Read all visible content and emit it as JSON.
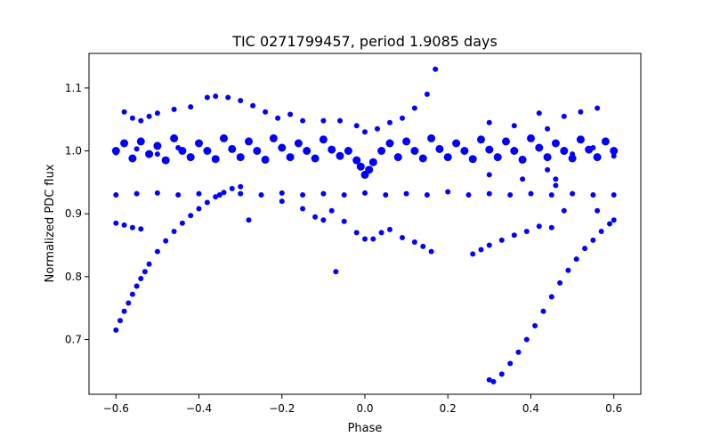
{
  "chart_data": {
    "type": "scatter",
    "title": "TIC 0271799457, period 1.9085 days",
    "xlabel": "Phase",
    "ylabel": "Normalized PDC flux",
    "xlim": [
      -0.665,
      0.665
    ],
    "ylim": [
      0.613,
      1.155
    ],
    "xticks": [
      -0.6,
      -0.4,
      -0.2,
      0.0,
      0.2,
      0.4,
      0.6
    ],
    "xtick_labels": [
      "−0.6",
      "−0.4",
      "−0.2",
      "0.0",
      "0.2",
      "0.4",
      "0.6"
    ],
    "yticks": [
      0.7,
      0.8,
      0.9,
      1.0,
      1.1
    ],
    "ytick_labels": [
      "0.7",
      "0.8",
      "0.9",
      "1.0",
      "1.1"
    ],
    "grid": false,
    "marker_color": "#0000ff",
    "series": [
      {
        "name": "main band",
        "points": [
          [
            -0.6,
            1.0
          ],
          [
            -0.58,
            1.012
          ],
          [
            -0.56,
            0.988
          ],
          [
            -0.54,
            1.015
          ],
          [
            -0.52,
            0.995
          ],
          [
            -0.5,
            1.008
          ],
          [
            -0.48,
            0.985
          ],
          [
            -0.46,
            1.02
          ],
          [
            -0.44,
            1.0
          ],
          [
            -0.42,
            0.99
          ],
          [
            -0.4,
            1.012
          ],
          [
            -0.38,
            1.0
          ],
          [
            -0.36,
            0.987
          ],
          [
            -0.34,
            1.02
          ],
          [
            -0.32,
            1.003
          ],
          [
            -0.3,
            0.99
          ],
          [
            -0.28,
            1.015
          ],
          [
            -0.26,
            1.0
          ],
          [
            -0.24,
            0.986
          ],
          [
            -0.22,
            1.02
          ],
          [
            -0.2,
            1.005
          ],
          [
            -0.18,
            0.99
          ],
          [
            -0.16,
            1.012
          ],
          [
            -0.14,
            1.0
          ],
          [
            -0.12,
            0.988
          ],
          [
            -0.1,
            1.018
          ],
          [
            -0.08,
            1.002
          ],
          [
            -0.06,
            0.992
          ],
          [
            -0.04,
            1.0
          ],
          [
            -0.02,
            0.985
          ],
          [
            -0.01,
            0.975
          ],
          [
            0.0,
            0.962
          ],
          [
            0.01,
            0.97
          ],
          [
            0.02,
            0.982
          ],
          [
            0.04,
            1.0
          ],
          [
            0.06,
            1.012
          ],
          [
            0.08,
            0.99
          ],
          [
            0.1,
            1.015
          ],
          [
            0.12,
            1.0
          ],
          [
            0.14,
            0.988
          ],
          [
            0.16,
            1.02
          ],
          [
            0.18,
            1.003
          ],
          [
            0.2,
            0.99
          ],
          [
            0.22,
            1.012
          ],
          [
            0.24,
            1.0
          ],
          [
            0.26,
            0.987
          ],
          [
            0.28,
            1.018
          ],
          [
            0.3,
            1.002
          ],
          [
            0.32,
            0.99
          ],
          [
            0.34,
            1.015
          ],
          [
            0.36,
            1.0
          ],
          [
            0.38,
            0.986
          ],
          [
            0.4,
            1.02
          ],
          [
            0.42,
            1.005
          ],
          [
            0.44,
            0.99
          ],
          [
            0.46,
            1.012
          ],
          [
            0.48,
            1.0
          ],
          [
            0.5,
            0.988
          ],
          [
            0.52,
            1.018
          ],
          [
            0.54,
            1.002
          ],
          [
            0.56,
            0.99
          ],
          [
            0.58,
            1.015
          ],
          [
            0.6,
            1.0
          ]
        ]
      },
      {
        "name": "outlier tracks",
        "points": [
          [
            -0.6,
            0.715
          ],
          [
            -0.59,
            0.73
          ],
          [
            -0.58,
            0.745
          ],
          [
            -0.57,
            0.758
          ],
          [
            -0.56,
            0.772
          ],
          [
            -0.55,
            0.785
          ],
          [
            -0.54,
            0.797
          ],
          [
            -0.53,
            0.808
          ],
          [
            -0.52,
            0.82
          ],
          [
            -0.5,
            0.84
          ],
          [
            -0.48,
            0.857
          ],
          [
            -0.46,
            0.872
          ],
          [
            -0.44,
            0.885
          ],
          [
            -0.42,
            0.897
          ],
          [
            -0.4,
            0.908
          ],
          [
            -0.38,
            0.918
          ],
          [
            -0.36,
            0.927
          ],
          [
            -0.34,
            0.934
          ],
          [
            -0.32,
            0.94
          ],
          [
            -0.3,
            0.943
          ],
          [
            -0.58,
            1.062
          ],
          [
            -0.56,
            1.052
          ],
          [
            -0.54,
            1.048
          ],
          [
            -0.52,
            1.055
          ],
          [
            -0.5,
            1.06
          ],
          [
            -0.46,
            1.066
          ],
          [
            -0.42,
            1.07
          ],
          [
            -0.38,
            1.085
          ],
          [
            -0.36,
            1.087
          ],
          [
            -0.33,
            1.085
          ],
          [
            -0.3,
            1.08
          ],
          [
            -0.27,
            1.072
          ],
          [
            -0.24,
            1.062
          ],
          [
            -0.21,
            1.052
          ],
          [
            -0.18,
            1.058
          ],
          [
            -0.15,
            1.048
          ],
          [
            -0.1,
            1.048
          ],
          [
            -0.06,
            1.048
          ],
          [
            -0.02,
            1.04
          ],
          [
            0.0,
            1.03
          ],
          [
            0.03,
            1.035
          ],
          [
            0.06,
            1.045
          ],
          [
            0.09,
            1.052
          ],
          [
            0.12,
            1.068
          ],
          [
            0.15,
            1.09
          ],
          [
            0.17,
            1.13
          ],
          [
            -0.6,
            0.93
          ],
          [
            -0.55,
            0.932
          ],
          [
            -0.5,
            0.933
          ],
          [
            -0.45,
            0.93
          ],
          [
            -0.4,
            0.932
          ],
          [
            -0.35,
            0.93
          ],
          [
            -0.3,
            0.932
          ],
          [
            -0.25,
            0.93
          ],
          [
            -0.2,
            0.933
          ],
          [
            -0.15,
            0.93
          ],
          [
            -0.1,
            0.932
          ],
          [
            -0.05,
            0.93
          ],
          [
            0.0,
            0.933
          ],
          [
            0.05,
            0.93
          ],
          [
            0.1,
            0.932
          ],
          [
            0.15,
            0.93
          ],
          [
            0.2,
            0.935
          ],
          [
            0.25,
            0.93
          ],
          [
            0.3,
            0.932
          ],
          [
            0.35,
            0.93
          ],
          [
            0.4,
            0.932
          ],
          [
            0.45,
            0.93
          ],
          [
            0.5,
            0.932
          ],
          [
            0.55,
            0.93
          ],
          [
            0.6,
            0.93
          ],
          [
            -0.6,
            0.885
          ],
          [
            -0.58,
            0.882
          ],
          [
            -0.56,
            0.878
          ],
          [
            -0.54,
            0.876
          ],
          [
            -0.28,
            0.89
          ],
          [
            -0.2,
            0.92
          ],
          [
            -0.15,
            0.908
          ],
          [
            -0.12,
            0.895
          ],
          [
            -0.1,
            0.89
          ],
          [
            -0.08,
            0.905
          ],
          [
            -0.05,
            0.888
          ],
          [
            -0.02,
            0.87
          ],
          [
            0.0,
            0.86
          ],
          [
            0.02,
            0.86
          ],
          [
            0.04,
            0.87
          ],
          [
            0.06,
            0.875
          ],
          [
            0.09,
            0.862
          ],
          [
            0.12,
            0.855
          ],
          [
            0.14,
            0.848
          ],
          [
            0.16,
            0.84
          ],
          [
            -0.07,
            0.808
          ],
          [
            0.26,
            0.836
          ],
          [
            0.28,
            0.843
          ],
          [
            0.3,
            0.85
          ],
          [
            0.33,
            0.858
          ],
          [
            0.36,
            0.866
          ],
          [
            0.39,
            0.872
          ],
          [
            0.42,
            0.88
          ],
          [
            0.45,
            0.878
          ],
          [
            0.3,
            0.636
          ],
          [
            0.31,
            0.633
          ],
          [
            0.33,
            0.645
          ],
          [
            0.35,
            0.662
          ],
          [
            0.37,
            0.68
          ],
          [
            0.39,
            0.7
          ],
          [
            0.41,
            0.722
          ],
          [
            0.43,
            0.745
          ],
          [
            0.45,
            0.768
          ],
          [
            0.47,
            0.79
          ],
          [
            0.49,
            0.81
          ],
          [
            0.51,
            0.828
          ],
          [
            0.53,
            0.845
          ],
          [
            0.55,
            0.858
          ],
          [
            0.57,
            0.872
          ],
          [
            0.59,
            0.884
          ],
          [
            0.6,
            0.89
          ],
          [
            -0.6,
            0.997
          ],
          [
            -0.55,
            1.003
          ],
          [
            -0.5,
            0.995
          ],
          [
            -0.45,
            1.005
          ],
          [
            0.5,
            0.995
          ],
          [
            0.55,
            1.005
          ],
          [
            0.6,
            0.992
          ],
          [
            0.3,
            1.045
          ],
          [
            0.36,
            1.04
          ],
          [
            0.42,
            1.06
          ],
          [
            0.48,
            1.055
          ],
          [
            0.52,
            1.062
          ],
          [
            0.56,
            1.068
          ],
          [
            0.3,
            0.962
          ],
          [
            0.38,
            0.955
          ],
          [
            0.44,
            0.97
          ],
          [
            0.46,
            0.945
          ],
          [
            0.48,
            0.905
          ],
          [
            0.56,
            0.905
          ],
          [
            0.44,
            1.035
          ],
          [
            0.46,
            0.955
          ]
        ]
      }
    ]
  }
}
